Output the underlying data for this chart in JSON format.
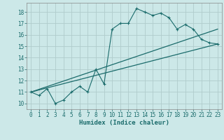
{
  "xlabel": "Humidex (Indice chaleur)",
  "bg_color": "#cce8e8",
  "grid_color": "#b8d8d8",
  "line_color": "#1a6b6b",
  "xlim": [
    -0.5,
    23.5
  ],
  "ylim": [
    9.5,
    18.8
  ],
  "x_ticks": [
    0,
    1,
    2,
    3,
    4,
    5,
    6,
    7,
    8,
    9,
    10,
    11,
    12,
    13,
    14,
    15,
    16,
    17,
    18,
    19,
    20,
    21,
    22,
    23
  ],
  "y_ticks": [
    10,
    11,
    12,
    13,
    14,
    15,
    16,
    17,
    18
  ],
  "main_line_x": [
    0,
    1,
    2,
    3,
    4,
    5,
    6,
    7,
    8,
    9,
    10,
    11,
    12,
    13,
    14,
    15,
    16,
    17,
    18,
    19,
    20,
    21,
    22,
    23
  ],
  "main_line_y": [
    11.0,
    10.7,
    11.3,
    10.0,
    10.3,
    11.0,
    11.5,
    11.0,
    13.0,
    11.7,
    16.5,
    17.0,
    17.0,
    18.3,
    18.0,
    17.7,
    17.9,
    17.5,
    16.5,
    16.9,
    16.5,
    15.6,
    15.3,
    15.2
  ],
  "line1_x": [
    0,
    23
  ],
  "line1_y": [
    11.0,
    15.2
  ],
  "line2_x": [
    0,
    23
  ],
  "line2_y": [
    11.0,
    16.5
  ],
  "xlabel_fontsize": 6.5,
  "tick_fontsize": 5.5
}
